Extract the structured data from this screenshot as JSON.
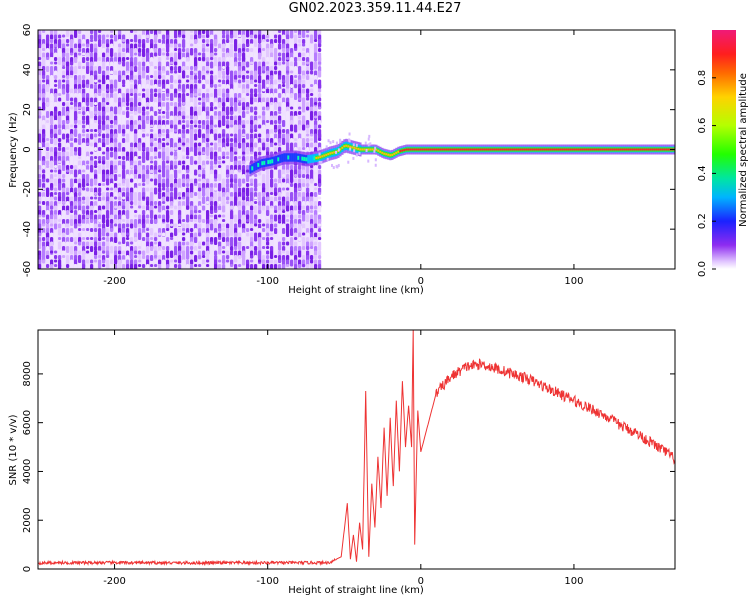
{
  "title": "GN02.2023.359.11.44.E27",
  "chart_data": [
    {
      "type": "heatmap",
      "name": "spectrogram",
      "xlabel": "Height of straight line (km)",
      "ylabel": "Frequency (Hz)",
      "xlim": [
        -250,
        166
      ],
      "ylim": [
        -60,
        60
      ],
      "xticks": [
        -200,
        -100,
        0,
        100
      ],
      "yticks": [
        -60,
        -40,
        -20,
        0,
        20,
        40,
        60
      ],
      "noise_region_x": [
        -250,
        -67
      ],
      "signal_track": {
        "x": [
          -112,
          -105,
          -98,
          -90,
          -82,
          -75,
          -67,
          -60,
          -55,
          -50,
          -45,
          -40,
          -35,
          -30,
          -25,
          -20,
          -15,
          -10,
          -5,
          0,
          50,
          100,
          166
        ],
        "freq": [
          -10,
          -7,
          -6,
          -4,
          -4,
          -5,
          -4,
          -2,
          -1,
          2,
          1,
          0,
          0,
          0,
          -2,
          -3,
          -1,
          0,
          0,
          0,
          0,
          0,
          0
        ]
      },
      "colorbar": {
        "label": "Normalized spectral amplitude",
        "range": [
          0,
          1
        ],
        "ticks": [
          0.0,
          0.2,
          0.4,
          0.6,
          0.8
        ]
      }
    },
    {
      "type": "line",
      "name": "snr",
      "xlabel": "Height of straight line (km)",
      "ylabel": "SNR (10 * v/v)",
      "xlim": [
        -250,
        166
      ],
      "ylim": [
        0,
        9800
      ],
      "xticks": [
        -200,
        -100,
        0,
        100
      ],
      "yticks": [
        0,
        2000,
        4000,
        6000,
        8000
      ],
      "color": "#ee3333",
      "series": [
        {
          "name": "SNR",
          "x": [
            -250,
            -200,
            -150,
            -100,
            -60,
            -52,
            -48,
            -46,
            -44,
            -42,
            -40,
            -38,
            -36,
            -34,
            -32,
            -30,
            -28,
            -26,
            -24,
            -22,
            -20,
            -18,
            -16,
            -14,
            -12,
            -10,
            -8,
            -6,
            -5,
            -4,
            -2,
            0,
            5,
            10,
            20,
            30,
            40,
            50,
            60,
            70,
            80,
            90,
            100,
            110,
            120,
            130,
            140,
            150,
            160,
            166
          ],
          "y": [
            250,
            260,
            250,
            255,
            260,
            500,
            2700,
            400,
            1400,
            300,
            1900,
            800,
            7300,
            500,
            3500,
            1700,
            4600,
            2500,
            5800,
            3000,
            6200,
            3400,
            6900,
            4000,
            7700,
            5000,
            6700,
            5000,
            9800,
            1000,
            6500,
            4800,
            6000,
            7200,
            7900,
            8300,
            8400,
            8200,
            8000,
            7800,
            7500,
            7200,
            6900,
            6600,
            6300,
            5900,
            5600,
            5200,
            4800,
            4500
          ]
        }
      ]
    }
  ]
}
